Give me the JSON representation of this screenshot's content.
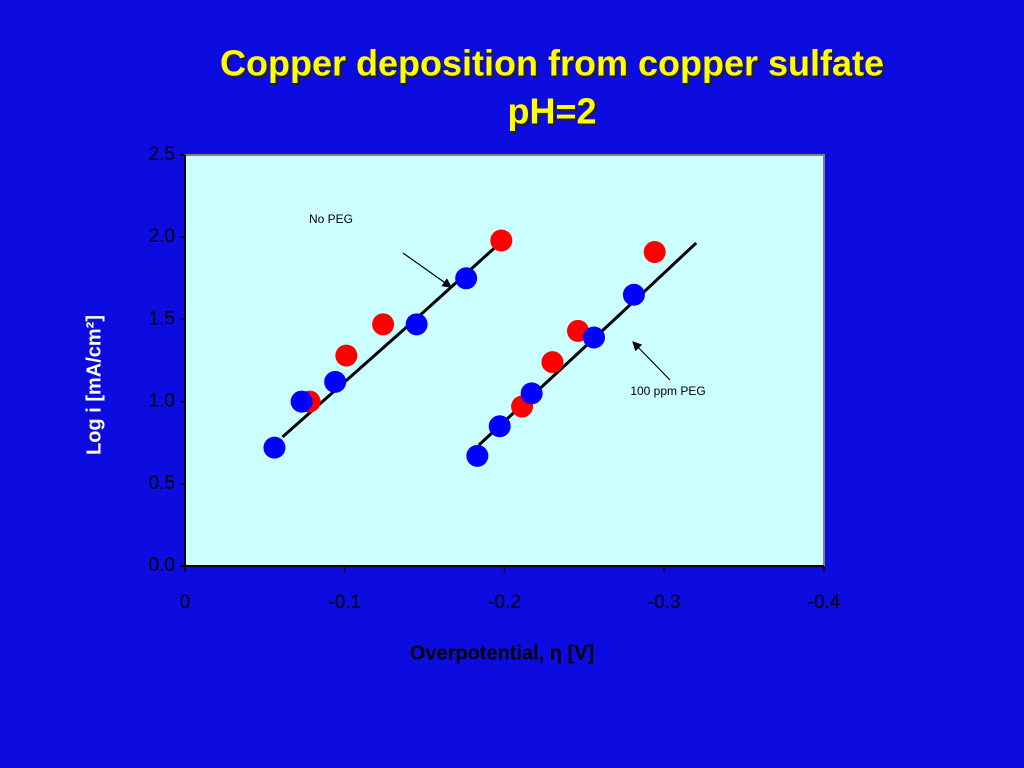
{
  "chart_data": {
    "type": "scatter",
    "title": "Copper deposition from copper sulfate",
    "subtitle": "pH=2",
    "x_label": "Overpotential, η  [V]",
    "y_label": "Log i [mA/cm²]",
    "xlim": [
      0,
      -0.4
    ],
    "xticks": [
      0,
      -0.1,
      -0.2,
      -0.3,
      -0.4
    ],
    "ylim": [
      0,
      2.5
    ],
    "yticks": [
      {
        "value": 0,
        "label": "0.0"
      },
      0.5,
      {
        "value": 1,
        "label": "1.0"
      },
      1.5,
      {
        "value": 2,
        "label": "2.0"
      },
      2.5
    ],
    "plot_background": "#ccffff",
    "annotations": [
      "No PEG",
      "100 ppm PEG"
    ],
    "series": [
      {
        "mode": "line",
        "color": "#000000",
        "x": [
          -0.061,
          -0.1,
          -0.15,
          -0.2
        ],
        "values": [
          0.785,
          1.12,
          1.55,
          1.99
        ]
      },
      {
        "mode": "line",
        "color": "#000000",
        "x": [
          -0.184,
          -0.22,
          -0.27,
          -0.32
        ],
        "values": [
          0.736,
          1.06,
          1.51,
          1.965
        ]
      },
      {
        "mode": "markers",
        "color": "#ff0000",
        "x": [
          -0.078,
          -0.101,
          -0.124,
          -0.198,
          -0.211,
          -0.23,
          -0.246,
          -0.294
        ],
        "values": [
          1.0,
          1.28,
          1.47,
          1.98,
          0.97,
          1.24,
          1.43,
          1.91
        ]
      },
      {
        "mode": "markers",
        "color": "#0000ff",
        "x": [
          -0.056,
          -0.073,
          -0.094,
          -0.145,
          -0.176,
          -0.183,
          -0.197,
          -0.217,
          -0.256,
          -0.281
        ],
        "values": [
          0.72,
          1.0,
          1.12,
          1.47,
          1.75,
          0.67,
          0.85,
          1.05,
          1.39,
          1.65
        ]
      }
    ]
  }
}
